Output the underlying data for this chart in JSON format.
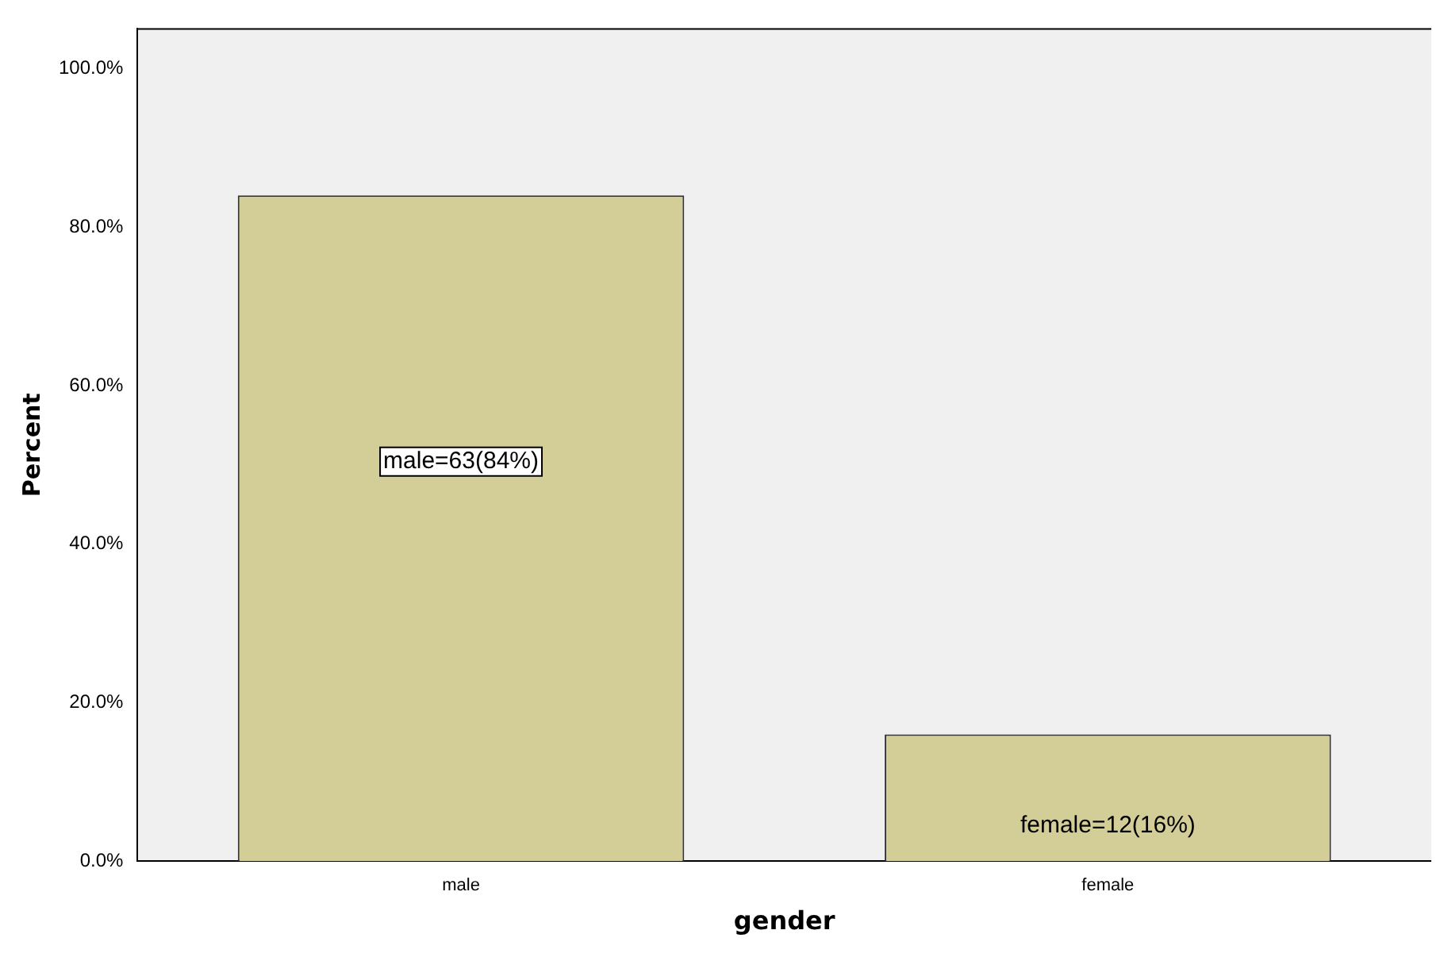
{
  "chart_data": {
    "type": "bar",
    "xlabel": "gender",
    "ylabel": "Percent",
    "categories": [
      "male",
      "female"
    ],
    "values": [
      84,
      16
    ],
    "value_labels": [
      "male=63(84%)",
      "female=12(16%)"
    ],
    "color": "#d3ce98",
    "ylim": [
      0,
      105
    ],
    "yticks": [
      {
        "value": 0,
        "label": "0.0%"
      },
      {
        "value": 20,
        "label": "20.0%"
      },
      {
        "value": 40,
        "label": "40.0%"
      },
      {
        "value": 60,
        "label": "60.0%"
      },
      {
        "value": 80,
        "label": "80.0%"
      },
      {
        "value": 100,
        "label": "100.0%"
      }
    ],
    "grid": false,
    "legend": false
  }
}
